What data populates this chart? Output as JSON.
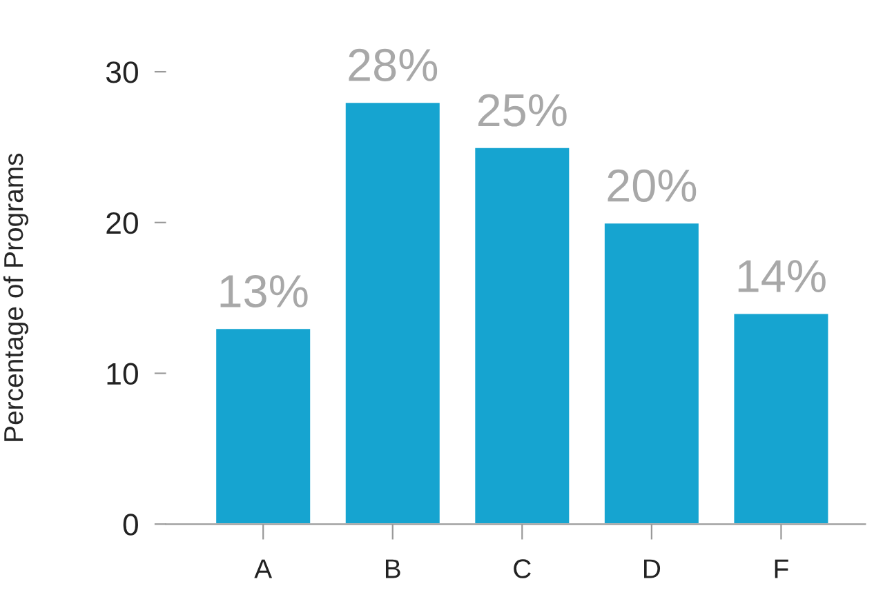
{
  "chart_data": {
    "type": "bar",
    "ylabel": "Percentage of Programs",
    "categories": [
      "A",
      "B",
      "C",
      "D",
      "F"
    ],
    "values": [
      13,
      28,
      25,
      20,
      14
    ],
    "value_labels": [
      "13%",
      "28%",
      "25%",
      "20%",
      "14%"
    ],
    "color": "#16a4d0",
    "ylim": [
      0,
      30
    ],
    "yticks": [
      0,
      10,
      20,
      30
    ],
    "grid": false,
    "legend": false
  }
}
